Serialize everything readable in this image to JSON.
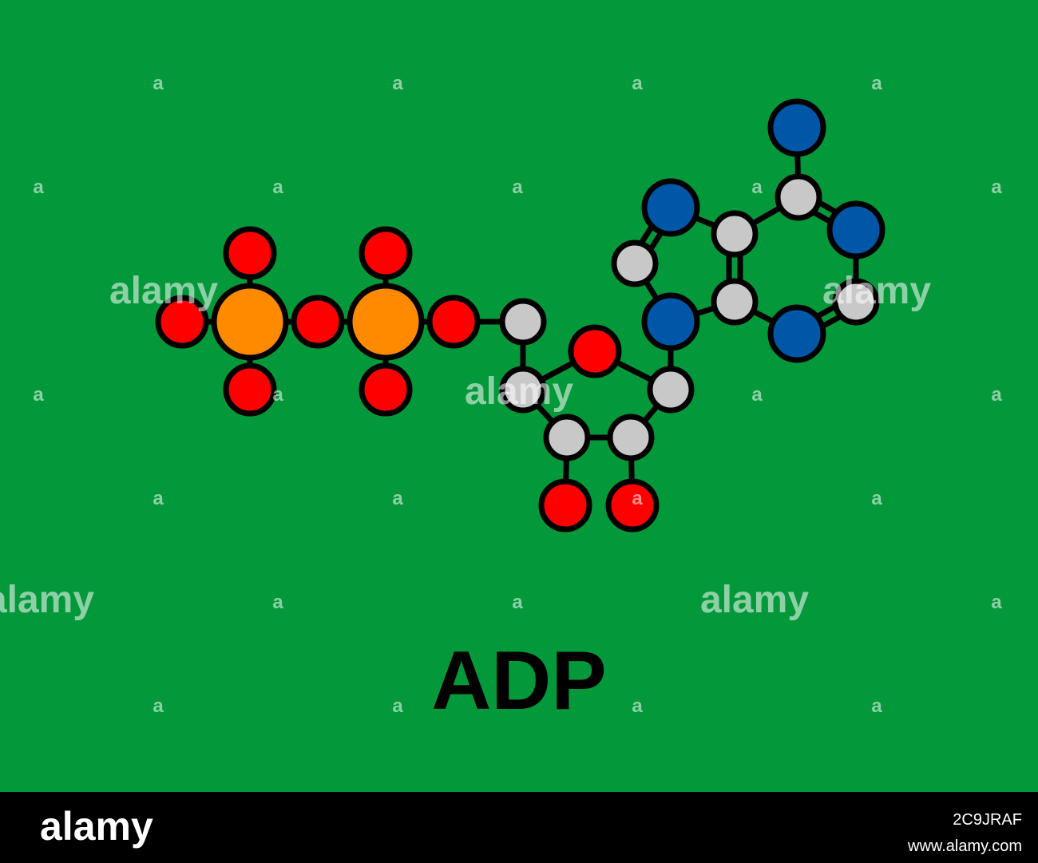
{
  "title": "ADP",
  "watermark": {
    "logo": "alamy",
    "mark": "a"
  },
  "footer": {
    "logo": "alamy",
    "image_id": "2C9JRAF",
    "url": "www.alamy.com"
  }
}
